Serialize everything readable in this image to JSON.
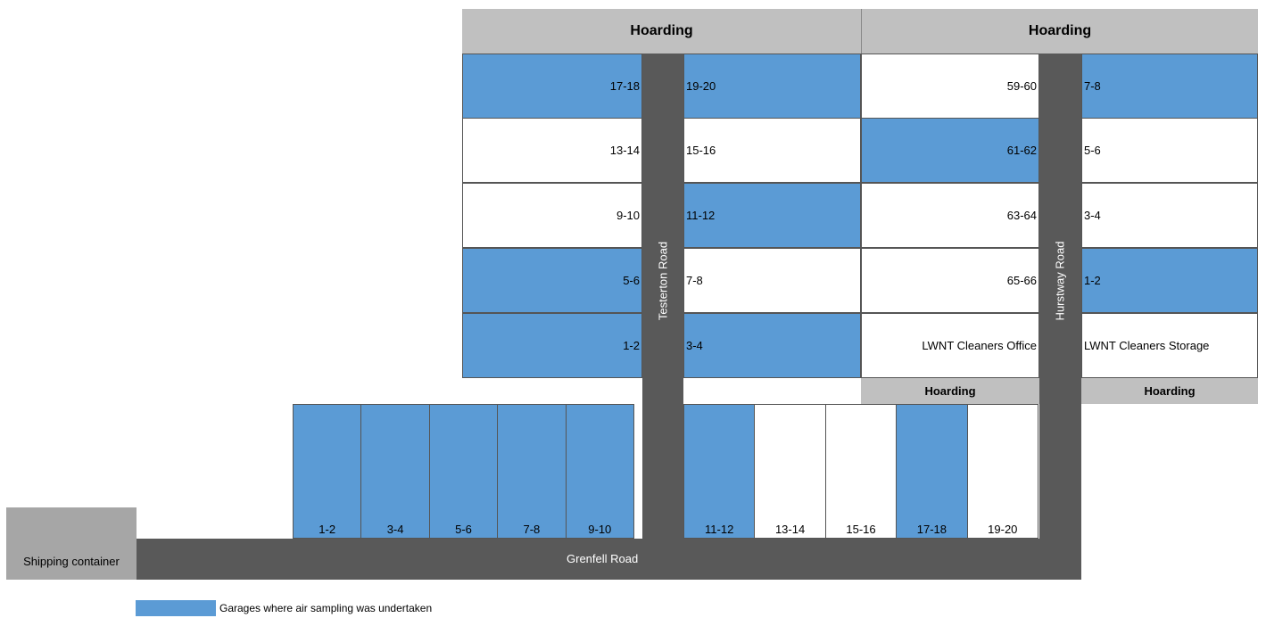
{
  "hoarding_label": "Hoarding",
  "roads": {
    "testerton": "Testerton Road",
    "hurstway": "Hurstway Road",
    "grenfell": "Grenfell Road"
  },
  "shipping_container": "Shipping container",
  "legend": {
    "label": "Garages where air sampling was undertaken",
    "color": "#5b9bd5"
  },
  "blocks": {
    "testerton_west": [
      {
        "label": "17-18",
        "sampled": true
      },
      {
        "label": "13-14",
        "sampled": false
      },
      {
        "label": "9-10",
        "sampled": false
      },
      {
        "label": "5-6",
        "sampled": true
      },
      {
        "label": "1-2",
        "sampled": true
      }
    ],
    "testerton_east": [
      {
        "label": "19-20",
        "sampled": true
      },
      {
        "label": "15-16",
        "sampled": false
      },
      {
        "label": "11-12",
        "sampled": true
      },
      {
        "label": "7-8",
        "sampled": false
      },
      {
        "label": "3-4",
        "sampled": true
      }
    ],
    "hurstway_west": [
      {
        "label": "59-60",
        "sampled": false
      },
      {
        "label": "61-62",
        "sampled": true
      },
      {
        "label": "63-64",
        "sampled": false
      },
      {
        "label": "65-66",
        "sampled": false
      },
      {
        "label": "LWNT Cleaners Office",
        "sampled": false
      }
    ],
    "hurstway_east": [
      {
        "label": "7-8",
        "sampled": true
      },
      {
        "label": "5-6",
        "sampled": false
      },
      {
        "label": "3-4",
        "sampled": false
      },
      {
        "label": "1-2",
        "sampled": true
      },
      {
        "label": "LWNT Cleaners Storage",
        "sampled": false
      }
    ],
    "grenfell_west": [
      {
        "label": "1-2",
        "sampled": true
      },
      {
        "label": "3-4",
        "sampled": true
      },
      {
        "label": "5-6",
        "sampled": true
      },
      {
        "label": "7-8",
        "sampled": true
      },
      {
        "label": "9-10",
        "sampled": true
      }
    ],
    "grenfell_east": [
      {
        "label": "11-12",
        "sampled": true
      },
      {
        "label": "13-14",
        "sampled": false
      },
      {
        "label": "15-16",
        "sampled": false
      },
      {
        "label": "17-18",
        "sampled": true
      },
      {
        "label": "19-20",
        "sampled": false
      }
    ]
  }
}
